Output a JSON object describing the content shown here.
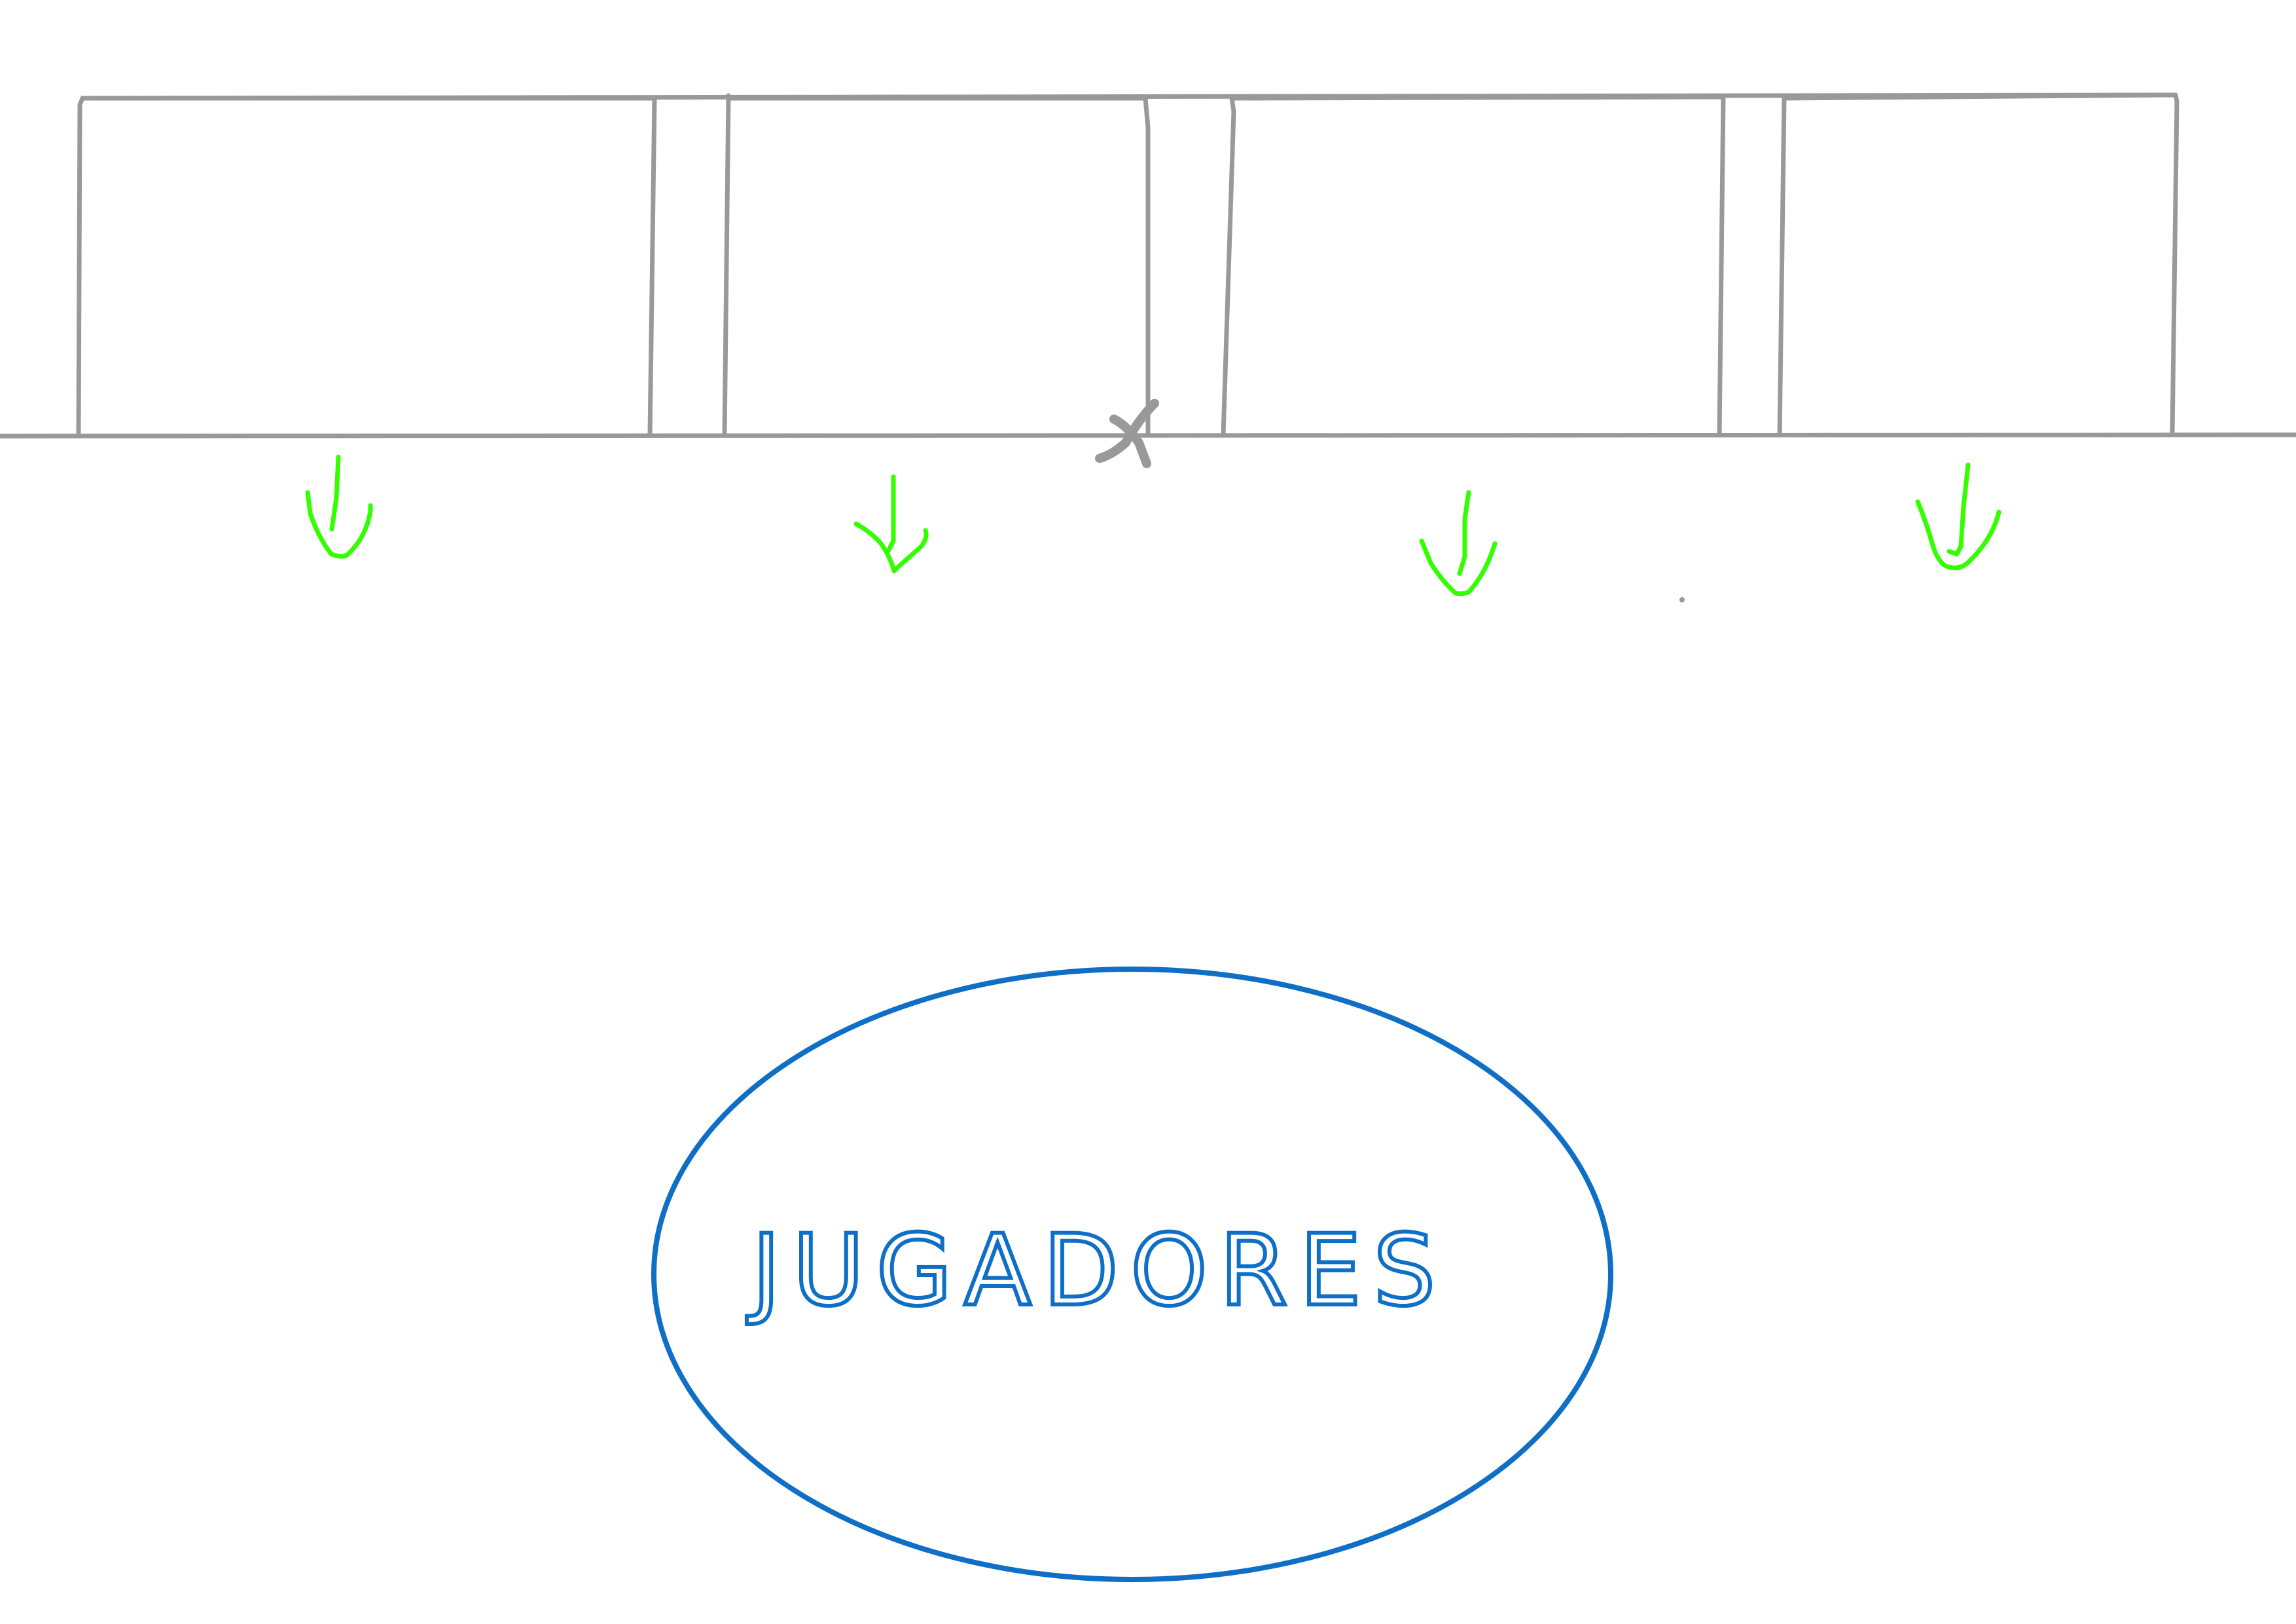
{
  "diagram": {
    "boxes": [
      {
        "id": "box-1"
      },
      {
        "id": "box-2"
      },
      {
        "id": "box-3"
      },
      {
        "id": "box-4"
      }
    ],
    "arrows": [
      {
        "id": "arrow-1",
        "direction": "down"
      },
      {
        "id": "arrow-2",
        "direction": "down"
      },
      {
        "id": "arrow-3",
        "direction": "down"
      },
      {
        "id": "arrow-4",
        "direction": "down"
      }
    ],
    "ellipse": {
      "label": "JUGADORES"
    },
    "colors": {
      "box_stroke": "#999999",
      "arrow_stroke": "#33ff00",
      "ellipse_stroke": "#0f6fc6",
      "background": "#ffffff"
    }
  }
}
